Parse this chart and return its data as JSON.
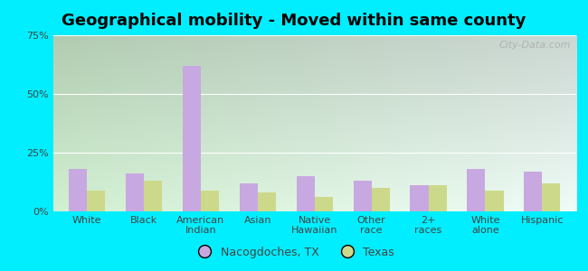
{
  "title": "Geographical mobility - Moved within same county",
  "categories": [
    "White",
    "Black",
    "American\nIndian",
    "Asian",
    "Native\nHawaiian",
    "Other\nrace",
    "2+\nraces",
    "White\nalone",
    "Hispanic"
  ],
  "nacogdoches_values": [
    18,
    16,
    62,
    12,
    15,
    13,
    11,
    18,
    17
  ],
  "texas_values": [
    9,
    13,
    9,
    8,
    6,
    10,
    11,
    9,
    12
  ],
  "nacogdoches_color": "#c8a8e0",
  "texas_color": "#ccd98a",
  "bar_width": 0.32,
  "ylim": [
    0,
    75
  ],
  "yticks": [
    0,
    25,
    50,
    75
  ],
  "ytick_labels": [
    "0%",
    "25%",
    "50%",
    "75%"
  ],
  "legend_labels": [
    "Nacogdoches, TX",
    "Texas"
  ],
  "background_color": "#00eeff",
  "title_fontsize": 13,
  "axis_fontsize": 8,
  "legend_fontsize": 9,
  "grid_color": "#ffffff",
  "watermark": "City-Data.com"
}
